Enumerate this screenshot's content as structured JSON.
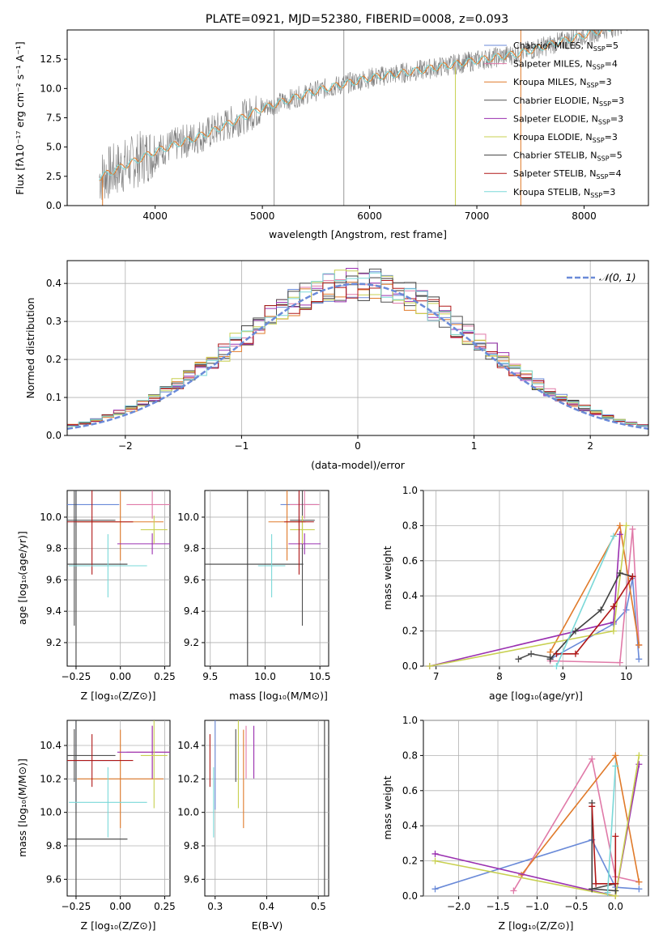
{
  "colors": {
    "Chabrier MILES": "#6a8ad8",
    "Salpeter MILES": "#e07aa8",
    "Kroupa MILES": "#e07a2a",
    "Chabrier ELODIE": "#505050",
    "Salpeter ELODIE": "#9a30b0",
    "Kroupa ELODIE": "#c8d050",
    "Chabrier STELIB": "#404040",
    "Salpeter STELIB": "#b01818",
    "Kroupa STELIB": "#7ad8d8"
  },
  "panels": {
    "spectrum": {
      "title": "PLATE=0921, MJD=52380, FIBERID=0008, z=0.093",
      "xlabel": "wavelength [Angstrom, rest frame]",
      "ylabel": "Flux [fλ10⁻¹⁷ erg cm⁻² s⁻¹ A⁻¹]",
      "xticks": [
        "4000",
        "5000",
        "6000",
        "7000",
        "8000"
      ],
      "yticks": [
        "0.0",
        "2.5",
        "5.0",
        "7.5",
        "10.0",
        "12.5"
      ],
      "legend": [
        {
          "name": "Chabrier MILES",
          "prefix": "Chabrier MILES, N",
          "sub": "SSP",
          "suffix": "=5"
        },
        {
          "name": "Salpeter MILES",
          "prefix": "Salpeter MILES, N",
          "sub": "SSP",
          "suffix": "=4"
        },
        {
          "name": "Kroupa MILES",
          "prefix": "Kroupa MILES, N",
          "sub": "SSP",
          "suffix": "=3"
        },
        {
          "name": "Chabrier ELODIE",
          "prefix": "Chabrier ELODIE, N",
          "sub": "SSP",
          "suffix": "=3"
        },
        {
          "name": "Salpeter ELODIE",
          "prefix": "Salpeter ELODIE, N",
          "sub": "SSP",
          "suffix": "=3"
        },
        {
          "name": "Kroupa ELODIE",
          "prefix": "Kroupa ELODIE, N",
          "sub": "SSP",
          "suffix": "=3"
        },
        {
          "name": "Chabrier STELIB",
          "prefix": "Chabrier STELIB, N",
          "sub": "SSP",
          "suffix": "=5"
        },
        {
          "name": "Salpeter STELIB",
          "prefix": "Salpeter STELIB, N",
          "sub": "SSP",
          "suffix": "=4"
        },
        {
          "name": "Kroupa STELIB",
          "prefix": "Kroupa STELIB, N",
          "sub": "SSP",
          "suffix": "=3"
        }
      ]
    },
    "residuals": {
      "xlabel": "(data-model)/error",
      "ylabel": "Normed distribution",
      "xticks": [
        "−2",
        "−1",
        "0",
        "1",
        "2"
      ],
      "yticks": [
        "0.0",
        "0.1",
        "0.2",
        "0.3",
        "0.4"
      ],
      "legend": "𝒩(0, 1)"
    },
    "age_z": {
      "xlabel": "Z [log₁₀(Z/Z⊙)]",
      "ylabel": "age  [log₁₀(age/yr)]",
      "xticks": [
        "−0.25",
        "0.00",
        "0.25"
      ],
      "yticks": [
        "9.2",
        "9.4",
        "9.6",
        "9.8",
        "10.0"
      ]
    },
    "age_mass": {
      "xlabel": "mass [log₁₀(M/M⊙)]",
      "xticks": [
        "9.5",
        "10.0",
        "10.5"
      ],
      "yticks": [
        "9.2",
        "9.4",
        "9.6",
        "9.8",
        "10.0"
      ]
    },
    "mw_age": {
      "xlabel": "age  [log₁₀(age/yr)]",
      "ylabel": "mass weight",
      "xticks": [
        "7",
        "8",
        "9",
        "10"
      ],
      "yticks": [
        "0.0",
        "0.2",
        "0.4",
        "0.6",
        "0.8",
        "1.0"
      ]
    },
    "mass_z": {
      "xlabel": "Z [log₁₀(Z/Z⊙)]",
      "ylabel": "mass [log₁₀(M/M⊙)]",
      "xticks": [
        "−0.25",
        "0.00",
        "0.25"
      ],
      "yticks": [
        "9.6",
        "9.8",
        "10.0",
        "10.2",
        "10.4"
      ]
    },
    "mass_ebv": {
      "xlabel": "E(B-V)",
      "xticks": [
        "0.3",
        "0.4",
        "0.5"
      ],
      "yticks": [
        "9.6",
        "9.8",
        "10.0",
        "10.2",
        "10.4"
      ]
    },
    "mw_z": {
      "xlabel": "Z [log₁₀(Z/Z⊙)]",
      "ylabel": "mass weight",
      "xticks": [
        "−2.0",
        "−1.5",
        "−1.0",
        "−0.5",
        "0.0"
      ],
      "yticks": [
        "0.0",
        "0.2",
        "0.4",
        "0.6",
        "0.8",
        "1.0"
      ]
    }
  },
  "chart_data": [
    {
      "type": "line",
      "title": "PLATE=0921, MJD=52380, FIBERID=0008, z=0.093",
      "xlabel": "wavelength [Angstrom, rest frame]",
      "ylabel": "Flux [fλ10⁻¹⁷ erg cm⁻² s⁻¹ A⁻¹]",
      "xlim": [
        3180,
        8600
      ],
      "ylim": [
        0,
        15
      ],
      "grid": false,
      "legend_position": "right",
      "series": [
        {
          "name": "Chabrier MILES, NSSP=5",
          "x": [
            3500,
            4000,
            4500,
            5000,
            5500,
            6000,
            6500,
            7000,
            7400
          ],
          "y": [
            2.5,
            4.6,
            6.2,
            8.3,
            9.8,
            10.9,
            11.6,
            12.4,
            13.0
          ]
        },
        {
          "name": "Kroupa STELIB, NSSP=3",
          "x": [
            3500,
            4000,
            4500,
            5000,
            5500,
            6000,
            6500,
            7000,
            7400
          ],
          "y": [
            2.6,
            4.7,
            6.3,
            8.3,
            9.9,
            11.0,
            11.7,
            12.5,
            13.1
          ]
        }
      ]
    },
    {
      "type": "line",
      "xlabel": "(data-model)/error",
      "ylabel": "Normed distribution",
      "xlim": [
        -2.5,
        2.5
      ],
      "ylim": [
        0,
        0.46
      ],
      "grid": true,
      "legend_position": "top-right",
      "series": [
        {
          "name": "𝒩(0, 1)",
          "x": [
            -2.5,
            -2,
            -1.5,
            -1,
            -0.5,
            0,
            0.5,
            1,
            1.5,
            2,
            2.5
          ],
          "y": [
            0.018,
            0.054,
            0.13,
            0.242,
            0.352,
            0.399,
            0.352,
            0.242,
            0.13,
            0.054,
            0.018
          ]
        }
      ]
    },
    {
      "type": "scatter",
      "xlabel": "Z [log₁₀(Z/Z⊙)]",
      "ylabel": "age  [log₁₀(age/yr)]",
      "xlim": [
        -0.3,
        0.28
      ],
      "ylim": [
        9.05,
        10.17
      ],
      "grid": true,
      "series": [
        {
          "name": "Chabrier MILES",
          "x": [
            -0.25
          ],
          "y": [
            10.08
          ]
        },
        {
          "name": "Salpeter MILES",
          "x": [
            0.18
          ],
          "y": [
            10.08
          ]
        },
        {
          "name": "Kroupa MILES",
          "x": [
            0.0
          ],
          "y": [
            9.97
          ]
        },
        {
          "name": "Chabrier ELODIE",
          "x": [
            -0.26
          ],
          "y": [
            9.98
          ]
        },
        {
          "name": "Salpeter ELODIE",
          "x": [
            0.18
          ],
          "y": [
            9.83
          ]
        },
        {
          "name": "Kroupa ELODIE",
          "x": [
            0.19
          ],
          "y": [
            9.92
          ]
        },
        {
          "name": "Chabrier STELIB",
          "x": [
            -0.25
          ],
          "y": [
            9.7
          ]
        },
        {
          "name": "Salpeter STELIB",
          "x": [
            -0.16
          ],
          "y": [
            9.97
          ]
        },
        {
          "name": "Kroupa STELIB",
          "x": [
            -0.07
          ],
          "y": [
            9.69
          ]
        }
      ]
    },
    {
      "type": "scatter",
      "xlabel": "mass [log₁₀(M/M⊙)]",
      "ylabel": "",
      "xlim": [
        9.45,
        10.58
      ],
      "ylim": [
        9.05,
        10.17
      ],
      "grid": true,
      "series": [
        {
          "name": "Chabrier MILES",
          "x": [
            10.31
          ],
          "y": [
            10.08
          ]
        },
        {
          "name": "Salpeter MILES",
          "x": [
            10.36
          ],
          "y": [
            10.08
          ]
        },
        {
          "name": "Kroupa MILES",
          "x": [
            10.2
          ],
          "y": [
            9.97
          ]
        },
        {
          "name": "Chabrier ELODIE",
          "x": [
            10.34
          ],
          "y": [
            9.98
          ]
        },
        {
          "name": "Salpeter ELODIE",
          "x": [
            10.36
          ],
          "y": [
            9.83
          ]
        },
        {
          "name": "Kroupa ELODIE",
          "x": [
            10.34
          ],
          "y": [
            9.92
          ]
        },
        {
          "name": "Chabrier STELIB",
          "x": [
            9.84
          ],
          "y": [
            9.7
          ]
        },
        {
          "name": "Salpeter STELIB",
          "x": [
            10.31
          ],
          "y": [
            9.97
          ]
        },
        {
          "name": "Kroupa STELIB",
          "x": [
            10.06
          ],
          "y": [
            9.69
          ]
        }
      ]
    },
    {
      "type": "line",
      "xlabel": "age  [log₁₀(age/yr)]",
      "ylabel": "mass weight",
      "xlim": [
        6.8,
        10.35
      ],
      "ylim": [
        0,
        1
      ],
      "grid": true,
      "series": [
        {
          "name": "Chabrier MILES",
          "x": [
            8.8,
            9.8,
            10.0,
            10.1,
            10.2
          ],
          "y": [
            0.04,
            0.24,
            0.32,
            0.5,
            0.04
          ]
        },
        {
          "name": "Salpeter MILES",
          "x": [
            8.8,
            9.9,
            10.1,
            10.2
          ],
          "y": [
            0.03,
            0.02,
            0.78,
            0.12
          ]
        },
        {
          "name": "Kroupa MILES",
          "x": [
            8.8,
            9.9,
            10.2
          ],
          "y": [
            0.08,
            0.8,
            0.12
          ]
        },
        {
          "name": "Chabrier ELODIE",
          "x": [
            8.3,
            8.5,
            8.8
          ],
          "y": [
            0.04,
            0.07,
            0.05
          ]
        },
        {
          "name": "Salpeter ELODIE",
          "x": [
            6.9,
            9.8,
            9.9
          ],
          "y": [
            0.0,
            0.25,
            0.75
          ]
        },
        {
          "name": "Kroupa ELODIE",
          "x": [
            6.9,
            9.8,
            10.0
          ],
          "y": [
            0.0,
            0.2,
            0.8
          ]
        },
        {
          "name": "Chabrier STELIB",
          "x": [
            8.8,
            9.2,
            9.6,
            9.9,
            10.1
          ],
          "y": [
            0.04,
            0.2,
            0.32,
            0.53,
            0.51
          ]
        },
        {
          "name": "Salpeter STELIB",
          "x": [
            8.9,
            9.2,
            9.8,
            10.1
          ],
          "y": [
            0.07,
            0.07,
            0.34,
            0.51
          ]
        },
        {
          "name": "Kroupa STELIB",
          "x": [
            8.9,
            9.8
          ],
          "y": [
            0.0,
            0.74
          ]
        }
      ]
    },
    {
      "type": "scatter",
      "xlabel": "Z [log₁₀(Z/Z⊙)]",
      "ylabel": "mass [log₁₀(M/M⊙)]",
      "xlim": [
        -0.3,
        0.28
      ],
      "ylim": [
        9.5,
        10.55
      ],
      "grid": true,
      "series": [
        {
          "name": "Chabrier MILES",
          "x": [
            -0.25
          ],
          "y": [
            10.31
          ]
        },
        {
          "name": "Salpeter MILES",
          "x": [
            0.18
          ],
          "y": [
            10.36
          ]
        },
        {
          "name": "Kroupa MILES",
          "x": [
            0.0
          ],
          "y": [
            10.2
          ]
        },
        {
          "name": "Chabrier ELODIE",
          "x": [
            -0.26
          ],
          "y": [
            10.34
          ]
        },
        {
          "name": "Salpeter ELODIE",
          "x": [
            0.18
          ],
          "y": [
            10.36
          ]
        },
        {
          "name": "Kroupa ELODIE",
          "x": [
            0.19
          ],
          "y": [
            10.34
          ]
        },
        {
          "name": "Chabrier STELIB",
          "x": [
            -0.25
          ],
          "y": [
            9.84
          ]
        },
        {
          "name": "Salpeter STELIB",
          "x": [
            -0.16
          ],
          "y": [
            10.31
          ]
        },
        {
          "name": "Kroupa STELIB",
          "x": [
            -0.07
          ],
          "y": [
            10.06
          ]
        }
      ]
    },
    {
      "type": "scatter",
      "xlabel": "E(B-V)",
      "ylabel": "",
      "xlim": [
        0.28,
        0.52
      ],
      "ylim": [
        9.5,
        10.55
      ],
      "grid": true,
      "series": [
        {
          "name": "Chabrier MILES",
          "x": [
            0.3
          ],
          "y": [
            10.31
          ]
        },
        {
          "name": "Salpeter MILES",
          "x": [
            0.36
          ],
          "y": [
            10.36
          ]
        },
        {
          "name": "Kroupa MILES",
          "x": [
            0.355
          ],
          "y": [
            10.2
          ]
        },
        {
          "name": "Chabrier ELODIE",
          "x": [
            0.34
          ],
          "y": [
            10.34
          ]
        },
        {
          "name": "Salpeter ELODIE",
          "x": [
            0.375
          ],
          "y": [
            10.36
          ]
        },
        {
          "name": "Kroupa ELODIE",
          "x": [
            0.345
          ],
          "y": [
            10.34
          ]
        },
        {
          "name": "Chabrier STELIB",
          "x": [
            0.512
          ],
          "y": [
            9.84
          ]
        },
        {
          "name": "Salpeter STELIB",
          "x": [
            0.29
          ],
          "y": [
            10.31
          ]
        },
        {
          "name": "Kroupa STELIB",
          "x": [
            0.297
          ],
          "y": [
            10.06
          ]
        }
      ]
    },
    {
      "type": "line",
      "xlabel": "Z [log₁₀(Z/Z⊙)]",
      "ylabel": "mass weight",
      "xlim": [
        -2.45,
        0.42
      ],
      "ylim": [
        0,
        1
      ],
      "grid": true,
      "series": [
        {
          "name": "Chabrier MILES",
          "x": [
            -2.3,
            -0.3,
            0.0,
            0.3
          ],
          "y": [
            0.04,
            0.32,
            0.05,
            0.04
          ]
        },
        {
          "name": "Salpeter MILES",
          "x": [
            -1.3,
            -0.3,
            0.0,
            0.3
          ],
          "y": [
            0.03,
            0.78,
            0.11,
            0.08
          ]
        },
        {
          "name": "Kroupa MILES",
          "x": [
            -1.2,
            0.0,
            0.3
          ],
          "y": [
            0.12,
            0.8,
            0.08
          ]
        },
        {
          "name": "Chabrier ELODIE",
          "x": [
            -0.3,
            0.0
          ],
          "y": [
            0.04,
            0.07
          ]
        },
        {
          "name": "Salpeter ELODIE",
          "x": [
            -2.3,
            0.0,
            0.3
          ],
          "y": [
            0.24,
            0.0,
            0.75
          ]
        },
        {
          "name": "Kroupa ELODIE",
          "x": [
            -2.3,
            0.0,
            0.3
          ],
          "y": [
            0.2,
            0.0,
            0.8
          ]
        },
        {
          "name": "Chabrier STELIB",
          "x": [
            -0.3,
            -0.3,
            0.0
          ],
          "y": [
            0.53,
            0.04,
            0.03
          ]
        },
        {
          "name": "Salpeter STELIB",
          "x": [
            -0.3,
            -0.25,
            0.0,
            0.0
          ],
          "y": [
            0.51,
            0.07,
            0.07,
            0.34
          ]
        },
        {
          "name": "Kroupa STELIB",
          "x": [
            -0.1,
            0.0
          ],
          "y": [
            0.02,
            0.74
          ]
        }
      ]
    }
  ]
}
